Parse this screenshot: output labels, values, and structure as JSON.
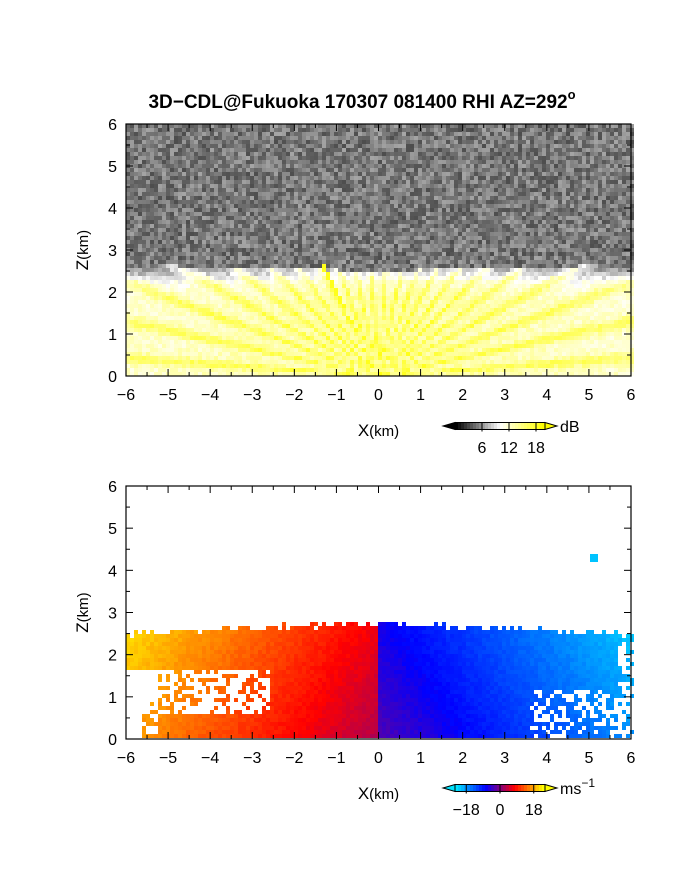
{
  "title": "3D−CDL@Fukuoka 170307 081400 RHI AZ=292",
  "title_sup": "o",
  "chart_data": [
    {
      "type": "heatmap",
      "variable": "backscatter intensity",
      "xlabel_main": "X",
      "xlabel_unit": "(km)",
      "ylabel_main": "Z",
      "ylabel_unit": "(km)",
      "xlim": [
        -6,
        6
      ],
      "ylim": [
        0,
        6
      ],
      "xticks": [
        -6,
        -5,
        -4,
        -3,
        -2,
        -1,
        0,
        1,
        2,
        3,
        4,
        5,
        6
      ],
      "xtick_labels": [
        "−6",
        "−5",
        "−4",
        "−3",
        "−2",
        "−1",
        "0",
        "1",
        "2",
        "3",
        "4",
        "5",
        "6"
      ],
      "yticks": [
        0,
        1,
        2,
        3,
        4,
        5,
        6
      ],
      "ytick_labels": [
        "0",
        "1",
        "2",
        "3",
        "4",
        "5",
        "6"
      ],
      "grid": false,
      "colorbar": {
        "unit": "dB",
        "tick_values": [
          6,
          12,
          18
        ],
        "tick_labels": [
          "6",
          "12",
          "18"
        ],
        "range": [
          0,
          20
        ],
        "colors": [
          "#000000",
          "#ffffff",
          "#ffff00"
        ]
      },
      "features": {
        "aerosol_layer_top_km": 2.5,
        "high_echo_streak_x_km": [
          -1.3,
          -0.1
        ],
        "high_echo_streak_z_km": [
          2.6,
          0.1
        ]
      }
    },
    {
      "type": "heatmap",
      "variable": "Doppler velocity",
      "xlabel_main": "X",
      "xlabel_unit": "(km)",
      "ylabel_main": "Z",
      "ylabel_unit": "(km)",
      "xlim": [
        -6,
        6
      ],
      "ylim": [
        0,
        6
      ],
      "xticks": [
        -6,
        -5,
        -4,
        -3,
        -2,
        -1,
        0,
        1,
        2,
        3,
        4,
        5,
        6
      ],
      "xtick_labels": [
        "−6",
        "−5",
        "−4",
        "−3",
        "−2",
        "−1",
        "0",
        "1",
        "2",
        "3",
        "4",
        "5",
        "6"
      ],
      "yticks": [
        0,
        1,
        2,
        3,
        4,
        5,
        6
      ],
      "ytick_labels": [
        "0",
        "1",
        "2",
        "3",
        "4",
        "5",
        "6"
      ],
      "grid": false,
      "colorbar": {
        "unit_main": "ms",
        "unit_sup": "−1",
        "tick_values": [
          -18,
          0,
          18
        ],
        "tick_labels": [
          "−18",
          "0",
          "18"
        ],
        "range": [
          -24,
          24
        ],
        "colors": [
          "#00e5ff",
          "#0000ff",
          "#ff0000",
          "#ffff00"
        ]
      },
      "features": {
        "echo_top_km": 2.75,
        "negative_side": "x>0",
        "positive_side": "x<0",
        "isolated_point": [
          5.1,
          4.3
        ]
      }
    }
  ]
}
